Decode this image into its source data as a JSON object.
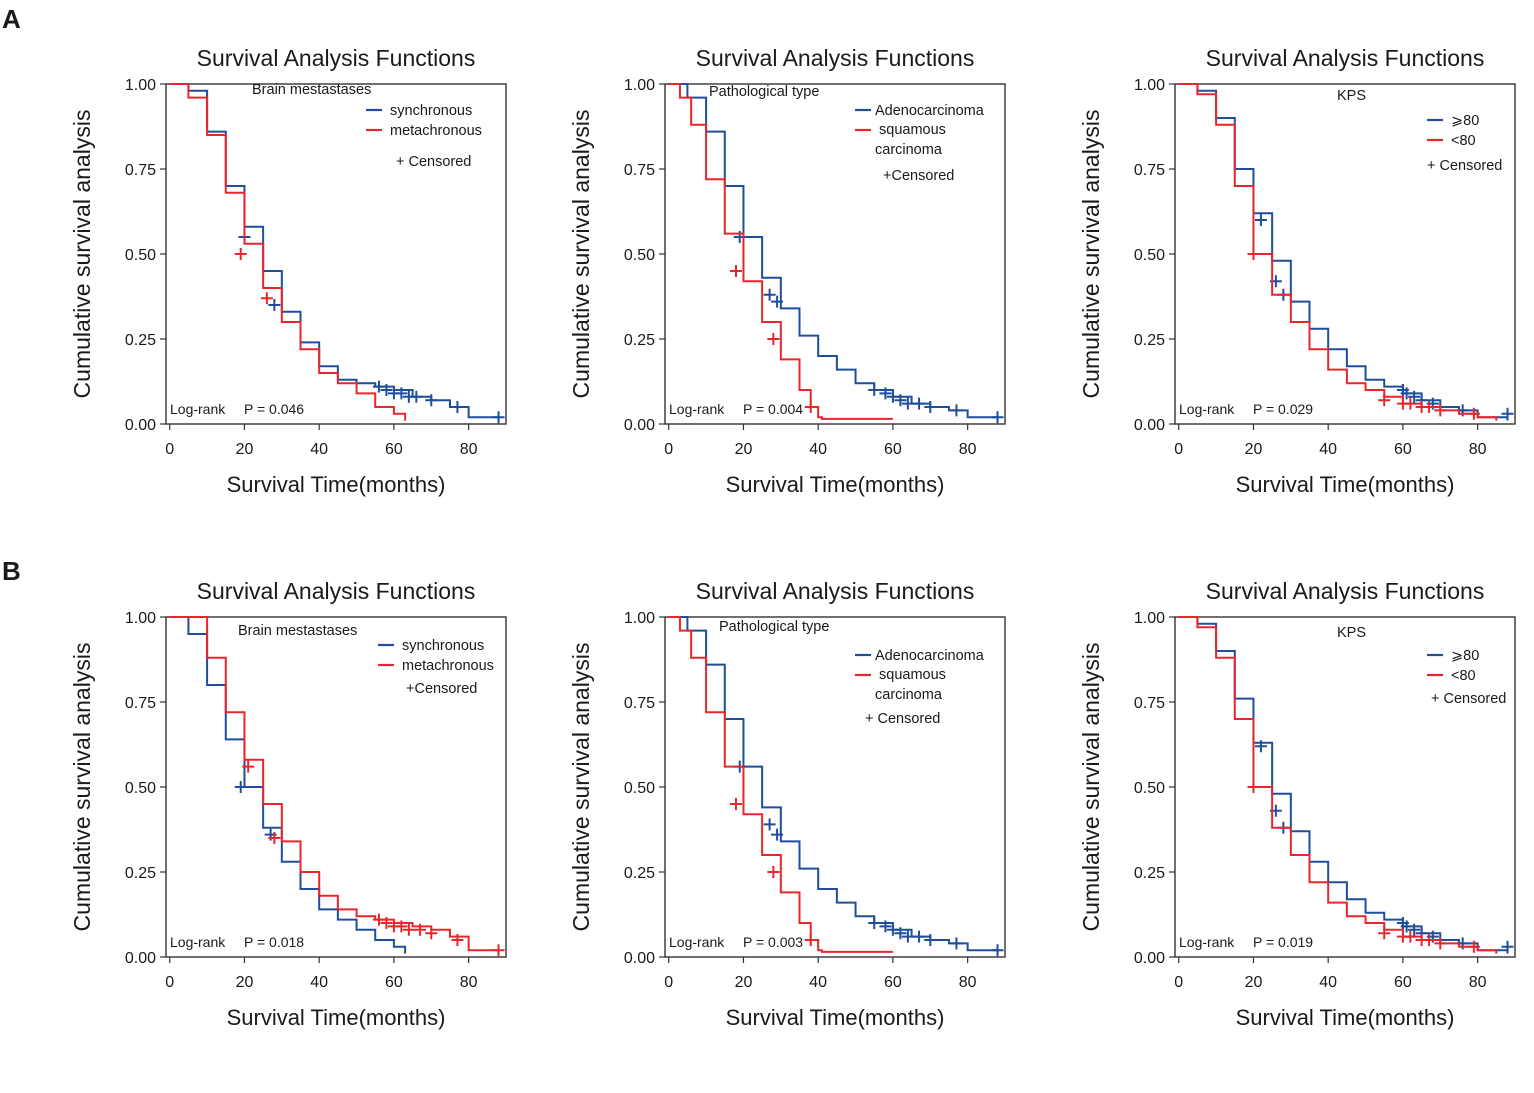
{
  "panels": {
    "a": "A",
    "b": "B"
  },
  "colors": {
    "blue": "#1f4e9c",
    "red": "#e8262c",
    "axis": "#333333"
  },
  "axes": {
    "title": "Survival Analysis Functions",
    "ylabel": "Cumulative survival analysis",
    "xlabel": "Survival Time(months)",
    "xticks": [
      0,
      20,
      40,
      60,
      80
    ],
    "yticks": [
      "0.00",
      "0.25",
      "0.50",
      "0.75",
      "1.00"
    ]
  },
  "chart_data": [
    {
      "type": "line",
      "title": "Survival Analysis Functions",
      "xlabel": "Survival Time(months)",
      "ylabel": "Cumulative survival analysis",
      "xlim": [
        -1,
        90
      ],
      "ylim": [
        0,
        1
      ],
      "heading": "Brain mestastases",
      "legend": [
        "synchronous",
        "metachronous"
      ],
      "censored_label": "+ Censored",
      "logrank": "Log-rank",
      "p_value": "P = 0.046",
      "series": [
        {
          "name": "synchronous",
          "color": "blue",
          "x": [
            0,
            5,
            10,
            15,
            20,
            25,
            30,
            35,
            40,
            45,
            50,
            55,
            60,
            65,
            70,
            75,
            80,
            88
          ],
          "y": [
            1,
            0.98,
            0.86,
            0.7,
            0.58,
            0.45,
            0.33,
            0.24,
            0.17,
            0.13,
            0.12,
            0.11,
            0.1,
            0.08,
            0.07,
            0.05,
            0.02,
            0.01
          ],
          "censor": [
            [
              20,
              0.55
            ],
            [
              28,
              0.35
            ],
            [
              56,
              0.11
            ],
            [
              58,
              0.1
            ],
            [
              60,
              0.09
            ],
            [
              62,
              0.09
            ],
            [
              64,
              0.08
            ],
            [
              66,
              0.08
            ],
            [
              70,
              0.07
            ],
            [
              77,
              0.05
            ],
            [
              88,
              0.02
            ]
          ]
        },
        {
          "name": "metachronous",
          "color": "red",
          "x": [
            0,
            5,
            10,
            15,
            20,
            25,
            30,
            35,
            40,
            45,
            50,
            55,
            60,
            63
          ],
          "y": [
            1,
            0.96,
            0.85,
            0.68,
            0.53,
            0.4,
            0.3,
            0.22,
            0.15,
            0.12,
            0.09,
            0.05,
            0.03,
            0.01
          ],
          "censor": [
            [
              19,
              0.5
            ],
            [
              26,
              0.37
            ]
          ]
        }
      ]
    },
    {
      "type": "line",
      "title": "Survival Analysis Functions",
      "xlabel": "Survival Time(months)",
      "ylabel": "Cumulative survival analysis",
      "xlim": [
        -1,
        90
      ],
      "ylim": [
        0,
        1
      ],
      "heading": "Pathological type",
      "legend": [
        "Adenocarcinoma",
        "squamous",
        "carcinoma"
      ],
      "censored_label": "+Censored",
      "logrank": "Log-rank",
      "p_value": "P = 0.004",
      "series": [
        {
          "name": "Adenocarcinoma",
          "color": "blue",
          "x": [
            0,
            5,
            10,
            15,
            20,
            25,
            30,
            35,
            40,
            45,
            50,
            55,
            60,
            65,
            70,
            75,
            80,
            88
          ],
          "y": [
            1,
            0.96,
            0.86,
            0.7,
            0.55,
            0.43,
            0.34,
            0.26,
            0.2,
            0.16,
            0.12,
            0.1,
            0.08,
            0.06,
            0.05,
            0.04,
            0.02,
            0.01
          ],
          "censor": [
            [
              19,
              0.55
            ],
            [
              27,
              0.38
            ],
            [
              29,
              0.36
            ],
            [
              55,
              0.1
            ],
            [
              58,
              0.09
            ],
            [
              60,
              0.08
            ],
            [
              62,
              0.07
            ],
            [
              64,
              0.06
            ],
            [
              67,
              0.06
            ],
            [
              70,
              0.05
            ],
            [
              77,
              0.04
            ],
            [
              88,
              0.02
            ]
          ]
        },
        {
          "name": "squamous carcinoma",
          "color": "red",
          "x": [
            0,
            3,
            6,
            10,
            15,
            20,
            25,
            30,
            35,
            38,
            40,
            41,
            60
          ],
          "y": [
            1,
            0.96,
            0.88,
            0.72,
            0.56,
            0.42,
            0.3,
            0.19,
            0.1,
            0.05,
            0.02,
            0.015,
            0.015
          ],
          "censor": [
            [
              18,
              0.45
            ],
            [
              28,
              0.25
            ],
            [
              38,
              0.05
            ]
          ]
        }
      ]
    },
    {
      "type": "line",
      "title": "Survival Analysis Functions",
      "xlabel": "Survival Time(months)",
      "ylabel": "Cumulative survival analysis",
      "xlim": [
        -1,
        90
      ],
      "ylim": [
        0,
        1
      ],
      "heading": "KPS",
      "legend": [
        "⩾80",
        "<80"
      ],
      "censored_label": "+ Censored",
      "logrank": "Log-rank",
      "p_value": "P = 0.029",
      "series": [
        {
          "name": "⩾80",
          "color": "blue",
          "x": [
            0,
            5,
            10,
            15,
            20,
            25,
            30,
            35,
            40,
            45,
            50,
            55,
            60,
            65,
            70,
            75,
            80,
            88
          ],
          "y": [
            1,
            0.98,
            0.9,
            0.75,
            0.62,
            0.48,
            0.36,
            0.28,
            0.22,
            0.17,
            0.13,
            0.11,
            0.09,
            0.07,
            0.05,
            0.04,
            0.02,
            0.01
          ],
          "censor": [
            [
              22,
              0.6
            ],
            [
              26,
              0.42
            ],
            [
              28,
              0.38
            ],
            [
              60,
              0.1
            ],
            [
              61,
              0.09
            ],
            [
              63,
              0.08
            ],
            [
              65,
              0.07
            ],
            [
              68,
              0.06
            ],
            [
              76,
              0.04
            ],
            [
              88,
              0.03
            ]
          ]
        },
        {
          "name": "<80",
          "color": "red",
          "x": [
            0,
            5,
            10,
            15,
            20,
            25,
            30,
            35,
            40,
            45,
            50,
            55,
            60,
            65,
            70,
            75,
            80,
            85
          ],
          "y": [
            1,
            0.97,
            0.88,
            0.7,
            0.5,
            0.38,
            0.3,
            0.22,
            0.16,
            0.12,
            0.1,
            0.08,
            0.06,
            0.05,
            0.04,
            0.03,
            0.02,
            0.01
          ],
          "censor": [
            [
              20,
              0.5
            ],
            [
              55,
              0.07
            ],
            [
              60,
              0.06
            ],
            [
              62,
              0.06
            ],
            [
              65,
              0.05
            ],
            [
              67,
              0.05
            ],
            [
              70,
              0.04
            ],
            [
              79,
              0.03
            ]
          ]
        }
      ]
    },
    {
      "type": "line",
      "title": "Survival Analysis Functions",
      "xlabel": "Survival Time(months)",
      "ylabel": "Cumulative survival analysis",
      "xlim": [
        -1,
        90
      ],
      "ylim": [
        0,
        1
      ],
      "heading": "Brain mestastases",
      "legend": [
        "synchronous",
        "metachronous"
      ],
      "censored_label": "+Censored",
      "logrank": "Log-rank",
      "p_value": "P = 0.018",
      "series": [
        {
          "name": "synchronous",
          "color": "blue",
          "x": [
            0,
            5,
            10,
            15,
            20,
            25,
            30,
            35,
            40,
            45,
            50,
            55,
            60,
            63
          ],
          "y": [
            1,
            0.95,
            0.8,
            0.64,
            0.5,
            0.38,
            0.28,
            0.2,
            0.14,
            0.11,
            0.08,
            0.05,
            0.03,
            0.01
          ],
          "censor": [
            [
              19,
              0.5
            ],
            [
              27,
              0.36
            ]
          ]
        },
        {
          "name": "metachronous",
          "color": "red",
          "x": [
            0,
            5,
            10,
            15,
            20,
            25,
            30,
            35,
            40,
            45,
            50,
            55,
            60,
            65,
            70,
            75,
            80,
            88
          ],
          "y": [
            1,
            1,
            0.88,
            0.72,
            0.58,
            0.45,
            0.34,
            0.25,
            0.18,
            0.14,
            0.12,
            0.11,
            0.1,
            0.09,
            0.08,
            0.06,
            0.02,
            0.02
          ],
          "censor": [
            [
              21,
              0.56
            ],
            [
              28,
              0.35
            ],
            [
              56,
              0.11
            ],
            [
              58,
              0.1
            ],
            [
              60,
              0.09
            ],
            [
              62,
              0.09
            ],
            [
              64,
              0.08
            ],
            [
              67,
              0.08
            ],
            [
              70,
              0.07
            ],
            [
              77,
              0.05
            ],
            [
              88,
              0.02
            ]
          ]
        }
      ]
    },
    {
      "type": "line",
      "title": "Survival Analysis Functions",
      "xlabel": "Survival Time(months)",
      "ylabel": "Cumulative survival analysis",
      "xlim": [
        -1,
        90
      ],
      "ylim": [
        0,
        1
      ],
      "heading": "Pathological type",
      "legend": [
        "Adenocarcinoma",
        "squamous",
        "carcinoma"
      ],
      "censored_label": "+ Censored",
      "logrank": "Log-rank",
      "p_value": "P = 0.003",
      "series": [
        {
          "name": "Adenocarcinoma",
          "color": "blue",
          "x": [
            0,
            5,
            10,
            15,
            20,
            25,
            30,
            35,
            40,
            45,
            50,
            55,
            60,
            65,
            70,
            75,
            80,
            88
          ],
          "y": [
            1,
            0.96,
            0.86,
            0.7,
            0.56,
            0.44,
            0.34,
            0.26,
            0.2,
            0.16,
            0.12,
            0.1,
            0.08,
            0.06,
            0.05,
            0.04,
            0.02,
            0.01
          ],
          "censor": [
            [
              19,
              0.56
            ],
            [
              27,
              0.39
            ],
            [
              29,
              0.36
            ],
            [
              55,
              0.1
            ],
            [
              58,
              0.09
            ],
            [
              60,
              0.08
            ],
            [
              62,
              0.07
            ],
            [
              64,
              0.06
            ],
            [
              67,
              0.06
            ],
            [
              70,
              0.05
            ],
            [
              77,
              0.04
            ],
            [
              88,
              0.02
            ]
          ]
        },
        {
          "name": "squamous carcinoma",
          "color": "red",
          "x": [
            0,
            3,
            6,
            10,
            15,
            20,
            25,
            30,
            35,
            38,
            40,
            41,
            60
          ],
          "y": [
            1,
            0.96,
            0.88,
            0.72,
            0.56,
            0.42,
            0.3,
            0.19,
            0.1,
            0.05,
            0.02,
            0.015,
            0.015
          ],
          "censor": [
            [
              18,
              0.45
            ],
            [
              28,
              0.25
            ],
            [
              38,
              0.05
            ]
          ]
        }
      ]
    },
    {
      "type": "line",
      "title": "Survival Analysis Functions",
      "xlabel": "Survival Time(months)",
      "ylabel": "Cumulative survival analysis",
      "xlim": [
        -1,
        90
      ],
      "ylim": [
        0,
        1
      ],
      "heading": "KPS",
      "legend": [
        "⩾80",
        "<80"
      ],
      "censored_label": "+ Censored",
      "logrank": "Log-rank",
      "p_value": "P = 0.019",
      "series": [
        {
          "name": "⩾80",
          "color": "blue",
          "x": [
            0,
            5,
            10,
            15,
            20,
            25,
            30,
            35,
            40,
            45,
            50,
            55,
            60,
            65,
            70,
            75,
            80,
            88
          ],
          "y": [
            1,
            0.98,
            0.9,
            0.76,
            0.63,
            0.48,
            0.37,
            0.28,
            0.22,
            0.17,
            0.13,
            0.11,
            0.09,
            0.07,
            0.05,
            0.04,
            0.02,
            0.01
          ],
          "censor": [
            [
              22,
              0.62
            ],
            [
              26,
              0.43
            ],
            [
              28,
              0.38
            ],
            [
              60,
              0.1
            ],
            [
              61,
              0.09
            ],
            [
              63,
              0.08
            ],
            [
              65,
              0.07
            ],
            [
              68,
              0.06
            ],
            [
              76,
              0.04
            ],
            [
              88,
              0.03
            ]
          ]
        },
        {
          "name": "<80",
          "color": "red",
          "x": [
            0,
            5,
            10,
            15,
            20,
            25,
            30,
            35,
            40,
            45,
            50,
            55,
            60,
            65,
            70,
            75,
            80,
            85
          ],
          "y": [
            1,
            0.97,
            0.88,
            0.7,
            0.5,
            0.38,
            0.3,
            0.22,
            0.16,
            0.12,
            0.1,
            0.08,
            0.06,
            0.05,
            0.04,
            0.03,
            0.02,
            0.01
          ],
          "censor": [
            [
              20,
              0.5
            ],
            [
              55,
              0.07
            ],
            [
              60,
              0.06
            ],
            [
              62,
              0.06
            ],
            [
              65,
              0.05
            ],
            [
              67,
              0.05
            ],
            [
              70,
              0.04
            ],
            [
              79,
              0.03
            ]
          ]
        }
      ]
    }
  ]
}
